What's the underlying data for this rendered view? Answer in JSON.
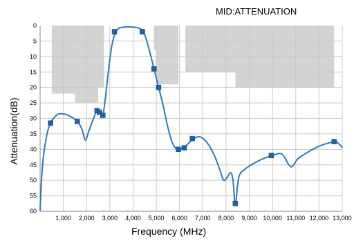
{
  "chart_data": {
    "type": "line",
    "title": "MID:ATTENUATION",
    "xlabel": "Frequency (MHz)",
    "ylabel": "Attenuation(dB)",
    "xlim": [
      0,
      13000
    ],
    "ylim": [
      0,
      60
    ],
    "y_inverted": true,
    "grid": true,
    "x_ticks": [
      "1,000",
      "2,000",
      "3,000",
      "4,000",
      "5,000",
      "6,000",
      "7,000",
      "8,000",
      "9,000",
      "10,000",
      "11,000",
      "12,000",
      "13,000"
    ],
    "y_ticks": [
      "0",
      "5",
      "10",
      "15",
      "20",
      "25",
      "30",
      "35",
      "40",
      "45",
      "50",
      "55",
      "60"
    ],
    "colors": {
      "line": "#2e78c0",
      "marker": "#1f5fa8",
      "mask": "#d3d3d3",
      "grid": "#c8c8c8"
    },
    "mask_regions": [
      {
        "x": [
          500,
          1500
        ],
        "y": 22
      },
      {
        "x": [
          1500,
          2500
        ],
        "y": 25
      },
      {
        "x": [
          2500,
          2750
        ],
        "y": 20
      },
      {
        "x": [
          4900,
          5000
        ],
        "y": 8
      },
      {
        "x": [
          5000,
          5950
        ],
        "y": 19
      },
      {
        "x": [
          6250,
          6600
        ],
        "y": 15
      },
      {
        "x": [
          6600,
          8400
        ],
        "y": 15
      },
      {
        "x": [
          8400,
          12650
        ],
        "y": 20
      }
    ],
    "series": [
      {
        "line": [
          [
            0,
            60
          ],
          [
            60,
            50
          ],
          [
            150,
            42
          ],
          [
            300,
            35
          ],
          [
            450,
            31.5
          ],
          [
            700,
            29
          ],
          [
            900,
            28.5
          ],
          [
            1200,
            29
          ],
          [
            1600,
            31
          ],
          [
            1800,
            33.5
          ],
          [
            1950,
            37
          ],
          [
            2100,
            34
          ],
          [
            2300,
            30
          ],
          [
            2450,
            27.5
          ],
          [
            2600,
            28.2
          ],
          [
            2700,
            29
          ],
          [
            2800,
            24
          ],
          [
            2950,
            14
          ],
          [
            3100,
            6
          ],
          [
            3300,
            1.5
          ],
          [
            3600,
            0.5
          ],
          [
            4000,
            0.5
          ],
          [
            4300,
            1
          ],
          [
            4500,
            3
          ],
          [
            4700,
            8
          ],
          [
            4900,
            14
          ],
          [
            5100,
            20
          ],
          [
            5300,
            26
          ],
          [
            5500,
            33
          ],
          [
            5700,
            38
          ],
          [
            5900,
            40
          ],
          [
            6150,
            39.5
          ],
          [
            6400,
            38
          ],
          [
            6600,
            36.5
          ],
          [
            6900,
            36
          ],
          [
            7200,
            38
          ],
          [
            7500,
            42
          ],
          [
            7750,
            47
          ],
          [
            7900,
            50
          ],
          [
            8050,
            49
          ],
          [
            8200,
            47.5
          ],
          [
            8300,
            50
          ],
          [
            8400,
            57.5
          ],
          [
            8550,
            49
          ],
          [
            8800,
            46.5
          ],
          [
            9200,
            44.5
          ],
          [
            9600,
            43
          ],
          [
            10000,
            42
          ],
          [
            10400,
            41.5
          ],
          [
            10700,
            45
          ],
          [
            10850,
            45.5
          ],
          [
            11100,
            43
          ],
          [
            11500,
            41
          ],
          [
            12000,
            39
          ],
          [
            12400,
            38
          ],
          [
            12700,
            37.5
          ],
          [
            12900,
            38.5
          ],
          [
            13000,
            39.5
          ]
        ],
        "markers": [
          [
            450,
            31.5
          ],
          [
            1600,
            31
          ],
          [
            2450,
            27.5
          ],
          [
            2550,
            28
          ],
          [
            2700,
            29
          ],
          [
            3200,
            2
          ],
          [
            4400,
            2
          ],
          [
            4900,
            14
          ],
          [
            5100,
            20
          ],
          [
            5950,
            40
          ],
          [
            6200,
            39.5
          ],
          [
            6550,
            36.5
          ],
          [
            8400,
            57.5
          ],
          [
            9950,
            42
          ],
          [
            12650,
            37.5
          ]
        ]
      }
    ]
  }
}
